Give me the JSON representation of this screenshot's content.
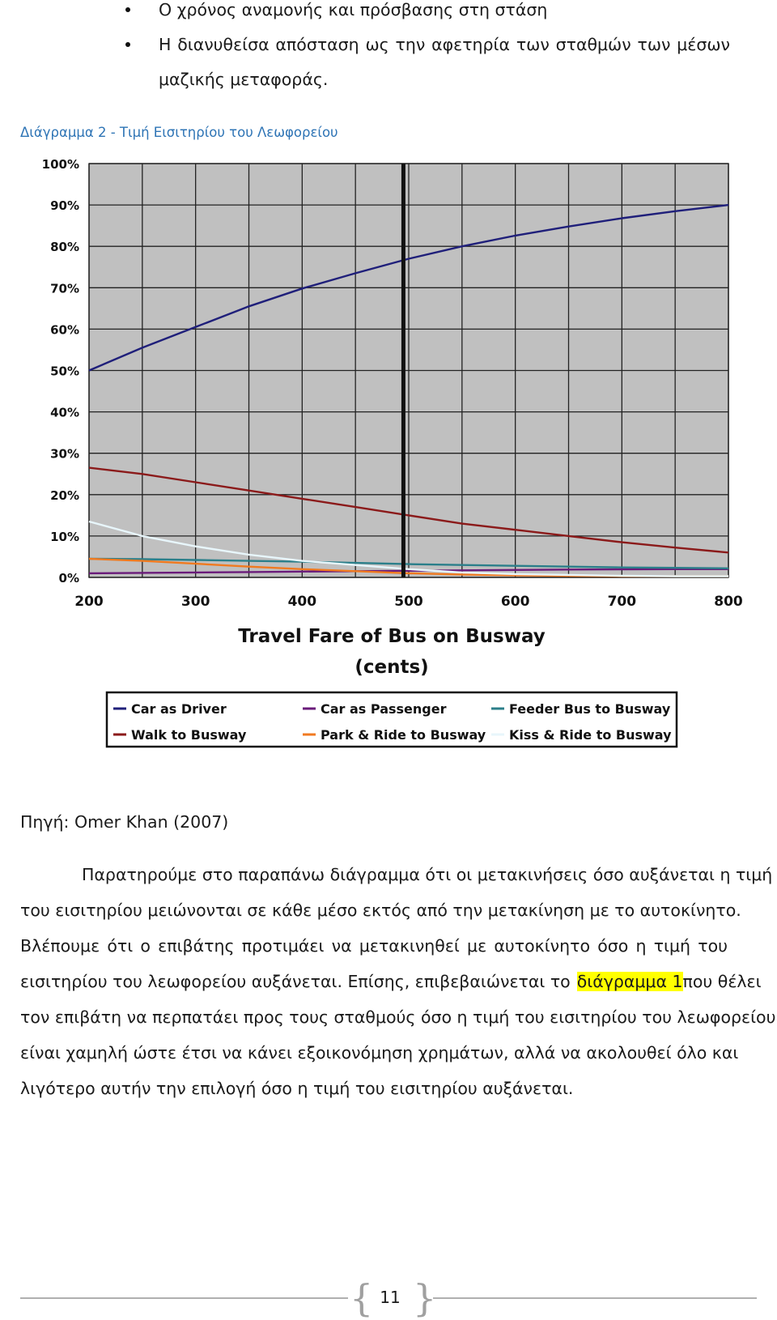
{
  "bullets": [
    "Ο χρόνος αναμονής και πρόσβασης στη στάση",
    "Η διανυθείσα απόσταση ως την αφετηρία των σταθμών των μέσων"
  ],
  "bullet_continuation": "μαζικής μεταφοράς.",
  "caption": "Διάγραμμα 2 - Τιμή Εισιτηρίου του Λεωφορείου",
  "chart_data": {
    "type": "line",
    "xlabel": "Travel Fare of Bus on Busway",
    "xlabel_unit": "(cents)",
    "x_ticks": [
      "200",
      "300",
      "400",
      "500",
      "600",
      "700",
      "800"
    ],
    "y_ticks": [
      "0%",
      "10%",
      "20%",
      "30%",
      "40%",
      "50%",
      "60%",
      "70%",
      "80%",
      "90%",
      "100%"
    ],
    "xlim": [
      200,
      800
    ],
    "ylim": [
      0,
      100
    ],
    "grid": true,
    "vertical_marker_x": 495,
    "legend_placement": "bottom",
    "x": [
      200,
      250,
      300,
      350,
      400,
      450,
      500,
      550,
      600,
      650,
      700,
      750,
      800
    ],
    "series": [
      {
        "name": "Car as Driver",
        "color": "#1f1f7a",
        "values": [
          50,
          55.5,
          60.5,
          65.5,
          69.8,
          73.5,
          77,
          80,
          82.6,
          84.8,
          86.8,
          88.5,
          90
        ]
      },
      {
        "name": "Car as Passenger",
        "color": "#6a1b7a",
        "values": [
          1.0,
          1.1,
          1.2,
          1.3,
          1.4,
          1.5,
          1.6,
          1.7,
          1.8,
          1.9,
          1.95,
          2.0,
          2.0
        ]
      },
      {
        "name": "Feeder Bus to Busway",
        "color": "#2b7f8a",
        "values": [
          4.5,
          4.4,
          4.2,
          4.0,
          3.8,
          3.5,
          3.2,
          3.0,
          2.8,
          2.6,
          2.4,
          2.3,
          2.2
        ]
      },
      {
        "name": "Walk to Busway",
        "color": "#8b1a1a",
        "values": [
          26.5,
          25,
          23,
          21,
          19,
          17,
          15,
          13,
          11.5,
          10,
          8.5,
          7.2,
          6
        ]
      },
      {
        "name": "Park & Ride to Busway",
        "color": "#f07a20",
        "values": [
          4.5,
          4.0,
          3.3,
          2.6,
          2.0,
          1.5,
          1.0,
          0.7,
          0.5,
          0.4,
          0.3,
          0.3,
          0.3
        ]
      },
      {
        "name": "Kiss & Ride to Busway",
        "color": "#e8f6fb",
        "values": [
          13.5,
          10.0,
          7.5,
          5.5,
          4.0,
          3.0,
          2.0,
          1.2,
          0.8,
          0.6,
          0.4,
          0.3,
          0.3
        ]
      }
    ]
  },
  "source": "Πηγή: Omer Khan (2007)",
  "paragraph": [
    "Παρατηρούμε στο παραπάνω διάγραμμα ότι οι μετακινήσεις όσο αυξάνεται η τιμή",
    "του εισιτηρίου μειώνονται σε κάθε μέσο εκτός από την μετακίνηση με το αυτοκίνητο.",
    "Βλέπουμε ότι ο επιβάτης προτιμάει να μετακινηθεί με αυτοκίνητο όσο η τιμή του",
    "εισιτηρίου του λεωφορείου αυξάνεται. Επίσης, επιβεβαιώνεται το",
    "διάγραμμα 1",
    "που θέλει",
    "τον επιβάτη να περπατάει προς τους σταθμούς όσο η τιμή του εισιτηρίου του λεωφορείου",
    "είναι χαμηλή ώστε έτσι να κάνει εξοικονόμηση χρημάτων, αλλά να ακολουθεί όλο και",
    "λιγότερο αυτήν την επιλογή όσο η τιμή του εισιτηρίου αυξάνεται."
  ],
  "page_number": "11"
}
